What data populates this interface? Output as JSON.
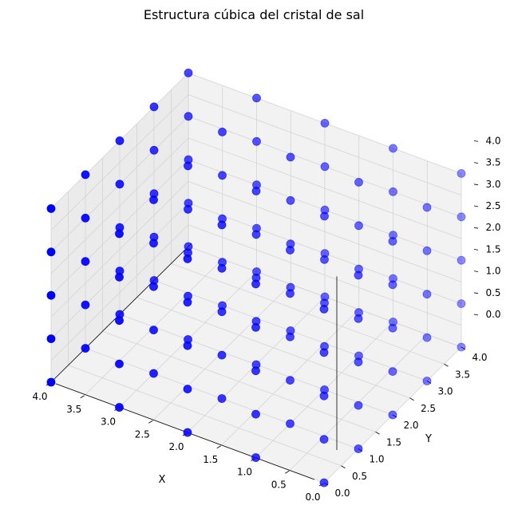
{
  "chart_data": {
    "type": "scatter",
    "projection": "3d",
    "title": "Estructura cúbica del cristal de sal",
    "xlabel": "X",
    "ylabel": "Y",
    "zlabel": "",
    "xlim": [
      0,
      4
    ],
    "ylim": [
      0,
      4
    ],
    "zlim": [
      0,
      4
    ],
    "xticks": [
      "0.0",
      "0.5",
      "1.0",
      "1.5",
      "2.0",
      "2.5",
      "3.0",
      "3.5",
      "4.0"
    ],
    "yticks": [
      "0.0",
      "0.5",
      "1.0",
      "1.5",
      "2.0",
      "2.5",
      "3.0",
      "3.5",
      "4.0"
    ],
    "zticks": [
      "0.0",
      "0.5",
      "1.0",
      "1.5",
      "2.0",
      "2.5",
      "3.0",
      "3.5",
      "4.0"
    ],
    "grid": true,
    "points": {
      "description_values": "all integer lattice points x,y,z in {0,1,2,3,4}",
      "x": [
        0,
        1,
        2,
        3,
        4
      ],
      "y": [
        0,
        1,
        2,
        3,
        4
      ],
      "z": [
        0,
        1,
        2,
        3,
        4
      ]
    },
    "marker_color": "#0000ff"
  }
}
